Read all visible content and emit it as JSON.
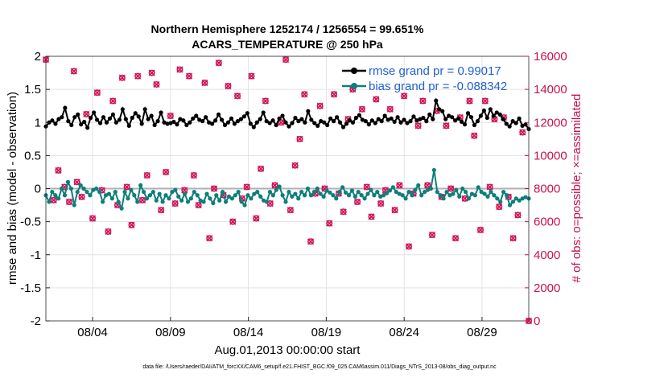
{
  "chart_data": {
    "type": "line",
    "title_line1": "Northern Hemisphere 1252174 / 1256554 = 99.651%",
    "title_line2": "ACARS_TEMPERATURE @ 250 hPa",
    "ylabel_left": "rmse and bias (model - observation)",
    "ylabel_right": "# of obs: o=possible; ×=assimilated",
    "xlabel": "Aug.01,2013 00:00:00 start",
    "footnote": "data file: /Users/raeder/DAI/ATM_forcXX/CAM6_setup/f.e21.FHIST_BGC.f09_025.CAM6assim.011/Diags_NTrS_2013-08/obs_diag_output.nc",
    "ylim_left": [
      -2,
      2
    ],
    "ylim_right": [
      0,
      16000
    ],
    "xlim_days": [
      1,
      32
    ],
    "left_ticks": [
      "-2",
      "-1.5",
      "-1",
      "-0.5",
      "0",
      "0.5",
      "1",
      "1.5",
      "2"
    ],
    "left_tick_values": [
      -2,
      -1.5,
      -1,
      -0.5,
      0,
      0.5,
      1,
      1.5,
      2
    ],
    "right_ticks": [
      "0",
      "2000",
      "4000",
      "6000",
      "8000",
      "10000",
      "12000",
      "14000",
      "16000"
    ],
    "right_tick_values": [
      0,
      2000,
      4000,
      6000,
      8000,
      10000,
      12000,
      14000,
      16000
    ],
    "x_ticks": [
      "08/04",
      "08/09",
      "08/14",
      "08/19",
      "08/24",
      "08/29"
    ],
    "x_tick_days": [
      4,
      9,
      14,
      19,
      24,
      29
    ],
    "series": [
      {
        "name": "rmse grand pr = 0.99017",
        "color": "#000000",
        "axis": "left",
        "values": [
          0.94,
          1.0,
          1.03,
          0.98,
          1.05,
          1.08,
          1.22,
          1.02,
          0.96,
          1.08,
          1.12,
          0.97,
          1.01,
          0.92,
          1.07,
          1.15,
          1.04,
          0.99,
          1.08,
          1.0,
          1.06,
          1.12,
          1.0,
          1.04,
          1.2,
          1.05,
          0.95,
          1.07,
          1.14,
          1.09,
          0.98,
          1.2,
          1.05,
          1.1,
          0.96,
          1.02,
          1.15,
          1.0,
          0.98,
          0.99,
          1.01,
          0.97,
          1.05,
          1.03,
          0.96,
          1.0,
          1.06,
          1.1,
          1.04,
          1.02,
          1.08,
          1.0,
          0.98,
          1.03,
          1.12,
          1.04,
          0.96,
          1.0,
          1.06,
          0.98,
          1.02,
          1.05,
          1.09,
          1.14,
          0.98,
          0.93,
          1.0,
          1.05,
          1.15,
          1.02,
          0.99,
          1.03,
          0.96,
          1.06,
          1.1,
          1.0,
          0.94,
          0.99,
          1.07,
          1.02,
          1.05,
          1.0,
          1.17,
          1.04,
          0.99,
          0.95,
          1.02,
          1.0,
          0.96,
          1.06,
          1.02,
          1.08,
          1.0,
          0.93,
          0.98,
          1.03,
          1.0,
          1.07,
          1.11,
          1.04,
          1.02,
          0.97,
          1.03,
          0.99,
          1.05,
          1.02,
          1.1,
          1.04,
          1.06,
          1.01,
          1.08,
          1.0,
          1.04,
          0.99,
          1.02,
          1.09,
          1.03,
          1.05,
          1.07,
          1.02,
          1.12,
          1.05,
          1.33,
          1.2,
          1.17,
          1.05,
          1.1,
          1.08,
          1.03,
          1.06,
          1.01,
          0.97,
          1.14,
          1.08,
          0.96,
          1.02,
          1.1,
          1.18,
          1.07,
          1.2,
          1.1,
          1.15,
          1.12,
          1.05,
          0.98,
          0.94,
          1.02,
          0.99,
          1.06,
          0.95,
          0.97,
          0.9
        ]
      },
      {
        "name": "bias grand pr = -0.088342",
        "color": "#0d7f7a",
        "axis": "left",
        "values": [
          -0.1,
          -0.2,
          -0.05,
          -0.1,
          -0.15,
          0.0,
          -0.1,
          0.1,
          0.0,
          -0.25,
          -0.05,
          0.05,
          0.0,
          -0.05,
          -0.1,
          -0.02,
          0.0,
          -0.05,
          -0.2,
          -0.1,
          -0.08,
          -0.15,
          -0.05,
          -0.2,
          -0.3,
          -0.05,
          -0.15,
          -0.02,
          -0.1,
          -0.2,
          0.05,
          -0.05,
          -0.15,
          -0.1,
          -0.05,
          -0.18,
          -0.08,
          -0.2,
          -0.1,
          -0.15,
          -0.05,
          -0.02,
          -0.12,
          -0.18,
          -0.08,
          -0.2,
          -0.15,
          -0.05,
          -0.1,
          -0.18,
          -0.2,
          -0.08,
          -0.15,
          -0.22,
          -0.1,
          -0.18,
          -0.05,
          -0.2,
          -0.12,
          -0.15,
          -0.1,
          -0.05,
          -0.2,
          -0.25,
          -0.1,
          -0.15,
          -0.08,
          -0.05,
          -0.12,
          -0.18,
          -0.2,
          -0.05,
          -0.1,
          -0.02,
          0.03,
          -0.1,
          -0.2,
          -0.05,
          -0.12,
          -0.08,
          -0.15,
          -0.05,
          -0.1,
          0.0,
          -0.1,
          -0.05,
          0.0,
          -0.08,
          -0.12,
          -0.03,
          -0.06,
          -0.1,
          -0.15,
          -0.05,
          0.02,
          -0.06,
          -0.1,
          -0.03,
          -0.12,
          -0.05,
          -0.1,
          -0.15,
          -0.08,
          -0.02,
          -0.1,
          -0.05,
          -0.12,
          -0.1,
          -0.07,
          -0.03,
          0.02,
          -0.05,
          -0.08,
          -0.1,
          -0.15,
          -0.05,
          -0.1,
          -0.02,
          0.05,
          -0.1,
          -0.05,
          -0.02,
          0.0,
          0.28,
          -0.05,
          -0.1,
          -0.15,
          -0.05,
          -0.1,
          -0.08,
          -0.02,
          -0.12,
          0.0,
          -0.05,
          -0.15,
          -0.08,
          -0.1,
          0.02,
          -0.05,
          -0.08,
          -0.12,
          -0.05,
          -0.1,
          -0.15,
          -0.2,
          -0.05,
          -0.1,
          -0.25,
          -0.2,
          -0.15,
          -0.18,
          -0.15,
          -0.13,
          -0.15
        ]
      }
    ],
    "obs_series": {
      "name": "# of obs",
      "color": "#d0145a",
      "axis": "right",
      "points": [
        [
          1.0,
          15800
        ],
        [
          1.5,
          7300
        ],
        [
          1.8,
          9100
        ],
        [
          2.2,
          8100
        ],
        [
          2.5,
          7200
        ],
        [
          2.8,
          15100
        ],
        [
          3.0,
          8400
        ],
        [
          3.3,
          7500
        ],
        [
          3.6,
          12500
        ],
        [
          4.0,
          6200
        ],
        [
          4.3,
          13800
        ],
        [
          4.6,
          7900
        ],
        [
          5.0,
          5400
        ],
        [
          5.3,
          13300
        ],
        [
          5.6,
          7000
        ],
        [
          5.9,
          14700
        ],
        [
          6.2,
          8100
        ],
        [
          6.5,
          5800
        ],
        [
          6.9,
          14800
        ],
        [
          7.2,
          7300
        ],
        [
          7.5,
          8800
        ],
        [
          7.8,
          15000
        ],
        [
          8.1,
          14300
        ],
        [
          8.4,
          6700
        ],
        [
          8.7,
          9000
        ],
        [
          9.0,
          12400
        ],
        [
          9.3,
          7100
        ],
        [
          9.6,
          15200
        ],
        [
          9.9,
          7900
        ],
        [
          10.2,
          14800
        ],
        [
          10.5,
          8800
        ],
        [
          10.8,
          7000
        ],
        [
          11.2,
          14400
        ],
        [
          11.5,
          5000
        ],
        [
          11.8,
          8000
        ],
        [
          12.1,
          15600
        ],
        [
          12.4,
          7600
        ],
        [
          12.7,
          14200
        ],
        [
          13.0,
          6000
        ],
        [
          13.3,
          13600
        ],
        [
          13.6,
          7400
        ],
        [
          13.9,
          8100
        ],
        [
          14.2,
          14800
        ],
        [
          14.5,
          6200
        ],
        [
          14.8,
          9200
        ],
        [
          15.1,
          13300
        ],
        [
          15.4,
          7100
        ],
        [
          15.7,
          8200
        ],
        [
          16.1,
          12000
        ],
        [
          16.4,
          15800
        ],
        [
          16.7,
          6700
        ],
        [
          17.0,
          9400
        ],
        [
          17.3,
          11000
        ],
        [
          17.6,
          13700
        ],
        [
          18.0,
          4800
        ],
        [
          18.3,
          7700
        ],
        [
          18.6,
          13000
        ],
        [
          18.9,
          8000
        ],
        [
          19.2,
          5900
        ],
        [
          19.5,
          13700
        ],
        [
          19.8,
          7700
        ],
        [
          20.1,
          6600
        ],
        [
          20.4,
          12200
        ],
        [
          20.7,
          14000
        ],
        [
          21.0,
          7200
        ],
        [
          21.3,
          12800
        ],
        [
          21.6,
          8100
        ],
        [
          21.9,
          6300
        ],
        [
          22.2,
          13400
        ],
        [
          22.5,
          7100
        ],
        [
          22.8,
          7900
        ],
        [
          23.1,
          12800
        ],
        [
          23.4,
          6700
        ],
        [
          23.7,
          8200
        ],
        [
          24.0,
          13600
        ],
        [
          24.3,
          4500
        ],
        [
          24.6,
          7700
        ],
        [
          24.9,
          11800
        ],
        [
          25.2,
          13300
        ],
        [
          25.5,
          8200
        ],
        [
          25.8,
          5200
        ],
        [
          26.1,
          12700
        ],
        [
          26.4,
          7500
        ],
        [
          26.7,
          11800
        ],
        [
          27.0,
          8000
        ],
        [
          27.3,
          5000
        ],
        [
          27.6,
          12300
        ],
        [
          27.9,
          7400
        ],
        [
          28.2,
          13300
        ],
        [
          28.5,
          11200
        ],
        [
          28.9,
          5500
        ],
        [
          29.2,
          13300
        ],
        [
          29.5,
          8100
        ],
        [
          29.8,
          12200
        ],
        [
          30.1,
          6900
        ],
        [
          30.4,
          12300
        ],
        [
          30.7,
          7500
        ],
        [
          31.0,
          5000
        ],
        [
          31.3,
          6400
        ],
        [
          31.6,
          11400
        ],
        [
          32.0,
          0
        ]
      ]
    },
    "legend_position": "top-right",
    "grid": true
  }
}
